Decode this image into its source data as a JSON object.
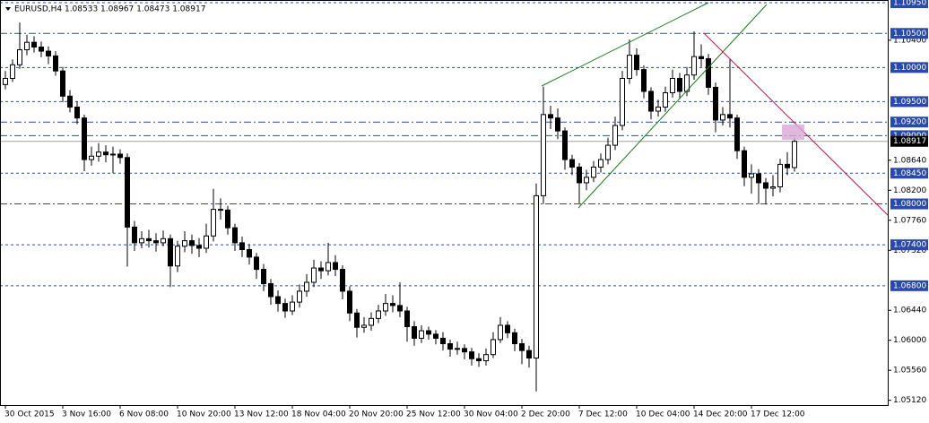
{
  "chart_data": {
    "type": "candlestick",
    "title": "EURUSD,H4  1.08533 1.08967 1.08473 1.08917",
    "ylim": [
      1.0505,
      1.1099
    ],
    "yticks": [
      {
        "value": 1.0512,
        "label": "1.05120"
      },
      {
        "value": 1.0556,
        "label": "1.05560"
      },
      {
        "value": 1.06,
        "label": "1.06000"
      },
      {
        "value": 1.0644,
        "label": "1.06440"
      },
      {
        "value": 1.0732,
        "label": "1.07320"
      },
      {
        "value": 1.0776,
        "label": "1.07760"
      },
      {
        "value": 1.082,
        "label": "1.08200"
      },
      {
        "value": 1.0864,
        "label": "1.08640"
      },
      {
        "value": 1.104,
        "label": "1.10400"
      }
    ],
    "levels": [
      {
        "value": 1.1095,
        "label": "1.10950",
        "dash": "dashed"
      },
      {
        "value": 1.105,
        "label": "1.10500",
        "dash": "dashdot"
      },
      {
        "value": 1.1,
        "label": "1.10000",
        "dash": "dashed"
      },
      {
        "value": 1.095,
        "label": "1.09500",
        "dash": "dashed"
      },
      {
        "value": 1.092,
        "label": "1.09200",
        "dash": "dashdot"
      },
      {
        "value": 1.09,
        "label": "1.09000",
        "dash": "dashdot"
      },
      {
        "value": 1.0845,
        "label": "1.08450",
        "dash": "dashed"
      },
      {
        "value": 1.08,
        "label": "1.08000",
        "dash": "dashdot"
      },
      {
        "value": 1.074,
        "label": "1.07400",
        "dash": "dashed"
      },
      {
        "value": 1.068,
        "label": "1.06800",
        "dash": "dashed"
      }
    ],
    "bid": {
      "value": 1.08917,
      "label": "1.08917"
    },
    "level_color": "#2a4aa8",
    "candle_color": "#000000",
    "categories": [
      "30 Oct 2015",
      null,
      null,
      null,
      null,
      null,
      null,
      null,
      "3 Nov 16:00",
      null,
      null,
      null,
      null,
      null,
      null,
      null,
      "6 Nov 08:00",
      null,
      null,
      null,
      null,
      null,
      null,
      null,
      "10 Nov 20:00",
      null,
      null,
      null,
      null,
      null,
      null,
      null,
      "13 Nov 12:00",
      null,
      null,
      null,
      null,
      null,
      null,
      null,
      "18 Nov 04:00",
      null,
      null,
      null,
      null,
      null,
      null,
      null,
      "20 Nov 20:00",
      null,
      null,
      null,
      null,
      null,
      null,
      null,
      "25 Nov 12:00",
      null,
      null,
      null,
      null,
      null,
      null,
      null,
      "30 Nov 04:00",
      null,
      null,
      null,
      null,
      null,
      null,
      null,
      "2 Dec 20:00",
      null,
      null,
      null,
      null,
      null,
      null,
      null,
      "7 Dec 12:00",
      null,
      null,
      null,
      null,
      null,
      null,
      null,
      "10 Dec 04:00",
      null,
      null,
      null,
      null,
      null,
      null,
      null,
      "14 Dec 20:00",
      null,
      null,
      null,
      null,
      null,
      null,
      null,
      "17 Dec 12:00",
      null,
      null,
      null,
      null,
      null,
      null
    ],
    "candles": [
      [
        1.0975,
        1.0995,
        1.0968,
        1.0984
      ],
      [
        1.0984,
        1.1012,
        1.0979,
        1.1004
      ],
      [
        1.1004,
        1.1066,
        1.0998,
        1.1026
      ],
      [
        1.1026,
        1.1048,
        1.1018,
        1.1037
      ],
      [
        1.1037,
        1.1046,
        1.1022,
        1.103
      ],
      [
        1.103,
        1.1038,
        1.1015,
        1.1024
      ],
      [
        1.1024,
        1.1031,
        1.1005,
        1.1017
      ],
      [
        1.1017,
        1.1024,
        1.0988,
        1.0995
      ],
      [
        1.0995,
        1.1001,
        1.0949,
        1.0958
      ],
      [
        1.0958,
        1.0967,
        1.0934,
        1.0942
      ],
      [
        1.0942,
        1.095,
        1.0917,
        1.0926
      ],
      [
        1.0926,
        1.0931,
        1.0848,
        1.0865
      ],
      [
        1.0865,
        1.0884,
        1.0856,
        1.087
      ],
      [
        1.087,
        1.0889,
        1.0862,
        1.0876
      ],
      [
        1.0876,
        1.0886,
        1.0861,
        1.0872
      ],
      [
        1.0872,
        1.0884,
        1.0845,
        1.0873
      ],
      [
        1.0873,
        1.088,
        1.0859,
        1.0868
      ],
      [
        1.0868,
        1.0874,
        1.0708,
        1.0766
      ],
      [
        1.0766,
        1.0775,
        1.0731,
        1.0743
      ],
      [
        1.0743,
        1.076,
        1.0735,
        1.0749
      ],
      [
        1.0749,
        1.0762,
        1.0736,
        1.0746
      ],
      [
        1.0746,
        1.0757,
        1.073,
        1.0743
      ],
      [
        1.0743,
        1.0761,
        1.0738,
        1.0749
      ],
      [
        1.0749,
        1.0755,
        1.0678,
        1.0709
      ],
      [
        1.0709,
        1.0746,
        1.07,
        1.0738
      ],
      [
        1.0738,
        1.076,
        1.0729,
        1.0746
      ],
      [
        1.0746,
        1.0755,
        1.0727,
        1.0739
      ],
      [
        1.0739,
        1.075,
        1.0722,
        1.0735
      ],
      [
        1.0735,
        1.0771,
        1.0728,
        1.0753
      ],
      [
        1.0753,
        1.0822,
        1.0745,
        1.0792
      ],
      [
        1.0792,
        1.0808,
        1.0777,
        1.0791
      ],
      [
        1.0791,
        1.0797,
        1.0755,
        1.0765
      ],
      [
        1.0765,
        1.0771,
        1.0731,
        1.0743
      ],
      [
        1.0743,
        1.0752,
        1.0722,
        1.0733
      ],
      [
        1.0733,
        1.0741,
        1.0711,
        1.0722
      ],
      [
        1.0722,
        1.0728,
        1.069,
        1.0704
      ],
      [
        1.0704,
        1.0712,
        1.0672,
        1.0683
      ],
      [
        1.0683,
        1.069,
        1.0652,
        1.0664
      ],
      [
        1.0664,
        1.0673,
        1.0642,
        1.0654
      ],
      [
        1.0654,
        1.0661,
        1.0633,
        1.0643
      ],
      [
        1.0643,
        1.0666,
        1.0637,
        1.0656
      ],
      [
        1.0656,
        1.0682,
        1.0648,
        1.0672
      ],
      [
        1.0672,
        1.0697,
        1.0664,
        1.0685
      ],
      [
        1.0685,
        1.0718,
        1.0678,
        1.0706
      ],
      [
        1.0706,
        1.0716,
        1.069,
        1.0702
      ],
      [
        1.0702,
        1.0743,
        1.0695,
        1.0714
      ],
      [
        1.0714,
        1.0725,
        1.0694,
        1.0704
      ],
      [
        1.0704,
        1.071,
        1.066,
        1.0672
      ],
      [
        1.0672,
        1.0679,
        1.0628,
        1.064
      ],
      [
        1.064,
        1.0646,
        1.0604,
        1.0619
      ],
      [
        1.0619,
        1.0634,
        1.0611,
        1.0622
      ],
      [
        1.0622,
        1.0641,
        1.0614,
        1.0632
      ],
      [
        1.0632,
        1.0652,
        1.0625,
        1.0643
      ],
      [
        1.0643,
        1.0668,
        1.0636,
        1.0654
      ],
      [
        1.0654,
        1.0666,
        1.0641,
        1.0651
      ],
      [
        1.0651,
        1.0685,
        1.0634,
        1.0643
      ],
      [
        1.0643,
        1.0649,
        1.0598,
        1.062
      ],
      [
        1.062,
        1.0628,
        1.0592,
        1.0603
      ],
      [
        1.0603,
        1.0622,
        1.0596,
        1.0614
      ],
      [
        1.0614,
        1.062,
        1.0601,
        1.0609
      ],
      [
        1.0609,
        1.0615,
        1.0594,
        1.0603
      ],
      [
        1.0603,
        1.0612,
        1.0585,
        1.0595
      ],
      [
        1.0595,
        1.0601,
        1.0576,
        1.0587
      ],
      [
        1.0587,
        1.0598,
        1.0579,
        1.0588
      ],
      [
        1.0588,
        1.0594,
        1.0572,
        1.0583
      ],
      [
        1.0583,
        1.0589,
        1.0563,
        1.0573
      ],
      [
        1.0573,
        1.0581,
        1.0561,
        1.057
      ],
      [
        1.057,
        1.0588,
        1.0563,
        1.0579
      ],
      [
        1.0579,
        1.0612,
        1.0574,
        1.0601
      ],
      [
        1.0601,
        1.0634,
        1.0596,
        1.0622
      ],
      [
        1.0622,
        1.0628,
        1.0603,
        1.0611
      ],
      [
        1.0611,
        1.0617,
        1.0584,
        1.0595
      ],
      [
        1.0595,
        1.0602,
        1.0565,
        1.0585
      ],
      [
        1.0585,
        1.0592,
        1.056,
        1.0574
      ],
      [
        1.0574,
        1.083,
        1.0525,
        1.0812
      ],
      [
        1.0812,
        1.0972,
        1.08,
        1.0931
      ],
      [
        1.0931,
        1.0944,
        1.091,
        1.0926
      ],
      [
        1.0926,
        1.094,
        1.0895,
        1.0907
      ],
      [
        1.0907,
        1.0912,
        1.085,
        1.0865
      ],
      [
        1.0865,
        1.0872,
        1.0842,
        1.0854
      ],
      [
        1.0854,
        1.086,
        1.0801,
        1.0831
      ],
      [
        1.0831,
        1.085,
        1.082,
        1.0839
      ],
      [
        1.0839,
        1.0863,
        1.0832,
        1.0854
      ],
      [
        1.0854,
        1.0874,
        1.0846,
        1.0865
      ],
      [
        1.0865,
        1.0897,
        1.0858,
        1.0886
      ],
      [
        1.0886,
        1.0928,
        1.0879,
        1.0915
      ],
      [
        1.0915,
        1.0995,
        1.0908,
        1.0984
      ],
      [
        1.0984,
        1.1041,
        1.0976,
        1.1018
      ],
      [
        1.1018,
        1.1028,
        1.0988,
        1.0997
      ],
      [
        1.0997,
        1.1003,
        1.0955,
        1.0965
      ],
      [
        1.0965,
        1.0971,
        1.0924,
        1.0936
      ],
      [
        1.0936,
        1.0953,
        1.0928,
        1.0942
      ],
      [
        1.0942,
        1.0972,
        1.0935,
        1.0963
      ],
      [
        1.0963,
        1.0997,
        1.0956,
        1.0984
      ],
      [
        1.0984,
        1.0992,
        1.0954,
        1.0965
      ],
      [
        1.0965,
        1.1001,
        1.0958,
        1.0989
      ],
      [
        1.0989,
        1.1053,
        1.0982,
        1.1016
      ],
      [
        1.1016,
        1.1034,
        1.1001,
        1.1013
      ],
      [
        1.1013,
        1.102,
        1.096,
        1.0971
      ],
      [
        1.0971,
        1.0978,
        1.0905,
        1.0923
      ],
      [
        1.0923,
        1.0942,
        1.0915,
        1.0931
      ],
      [
        1.0931,
        1.1012,
        1.0912,
        1.0926
      ],
      [
        1.0926,
        1.0931,
        1.0866,
        1.0878
      ],
      [
        1.0878,
        1.0884,
        1.0826,
        1.0839
      ],
      [
        1.0839,
        1.0858,
        1.0815,
        1.0844
      ],
      [
        1.0844,
        1.0851,
        1.08,
        1.0831
      ],
      [
        1.0831,
        1.0838,
        1.0799,
        1.0823
      ],
      [
        1.0823,
        1.0842,
        1.0811,
        1.0825
      ],
      [
        1.0825,
        1.0866,
        1.0817,
        1.0858
      ],
      [
        1.0858,
        1.0876,
        1.0842,
        1.0853
      ],
      [
        1.08533,
        1.08967,
        1.08473,
        1.08917
      ]
    ]
  }
}
